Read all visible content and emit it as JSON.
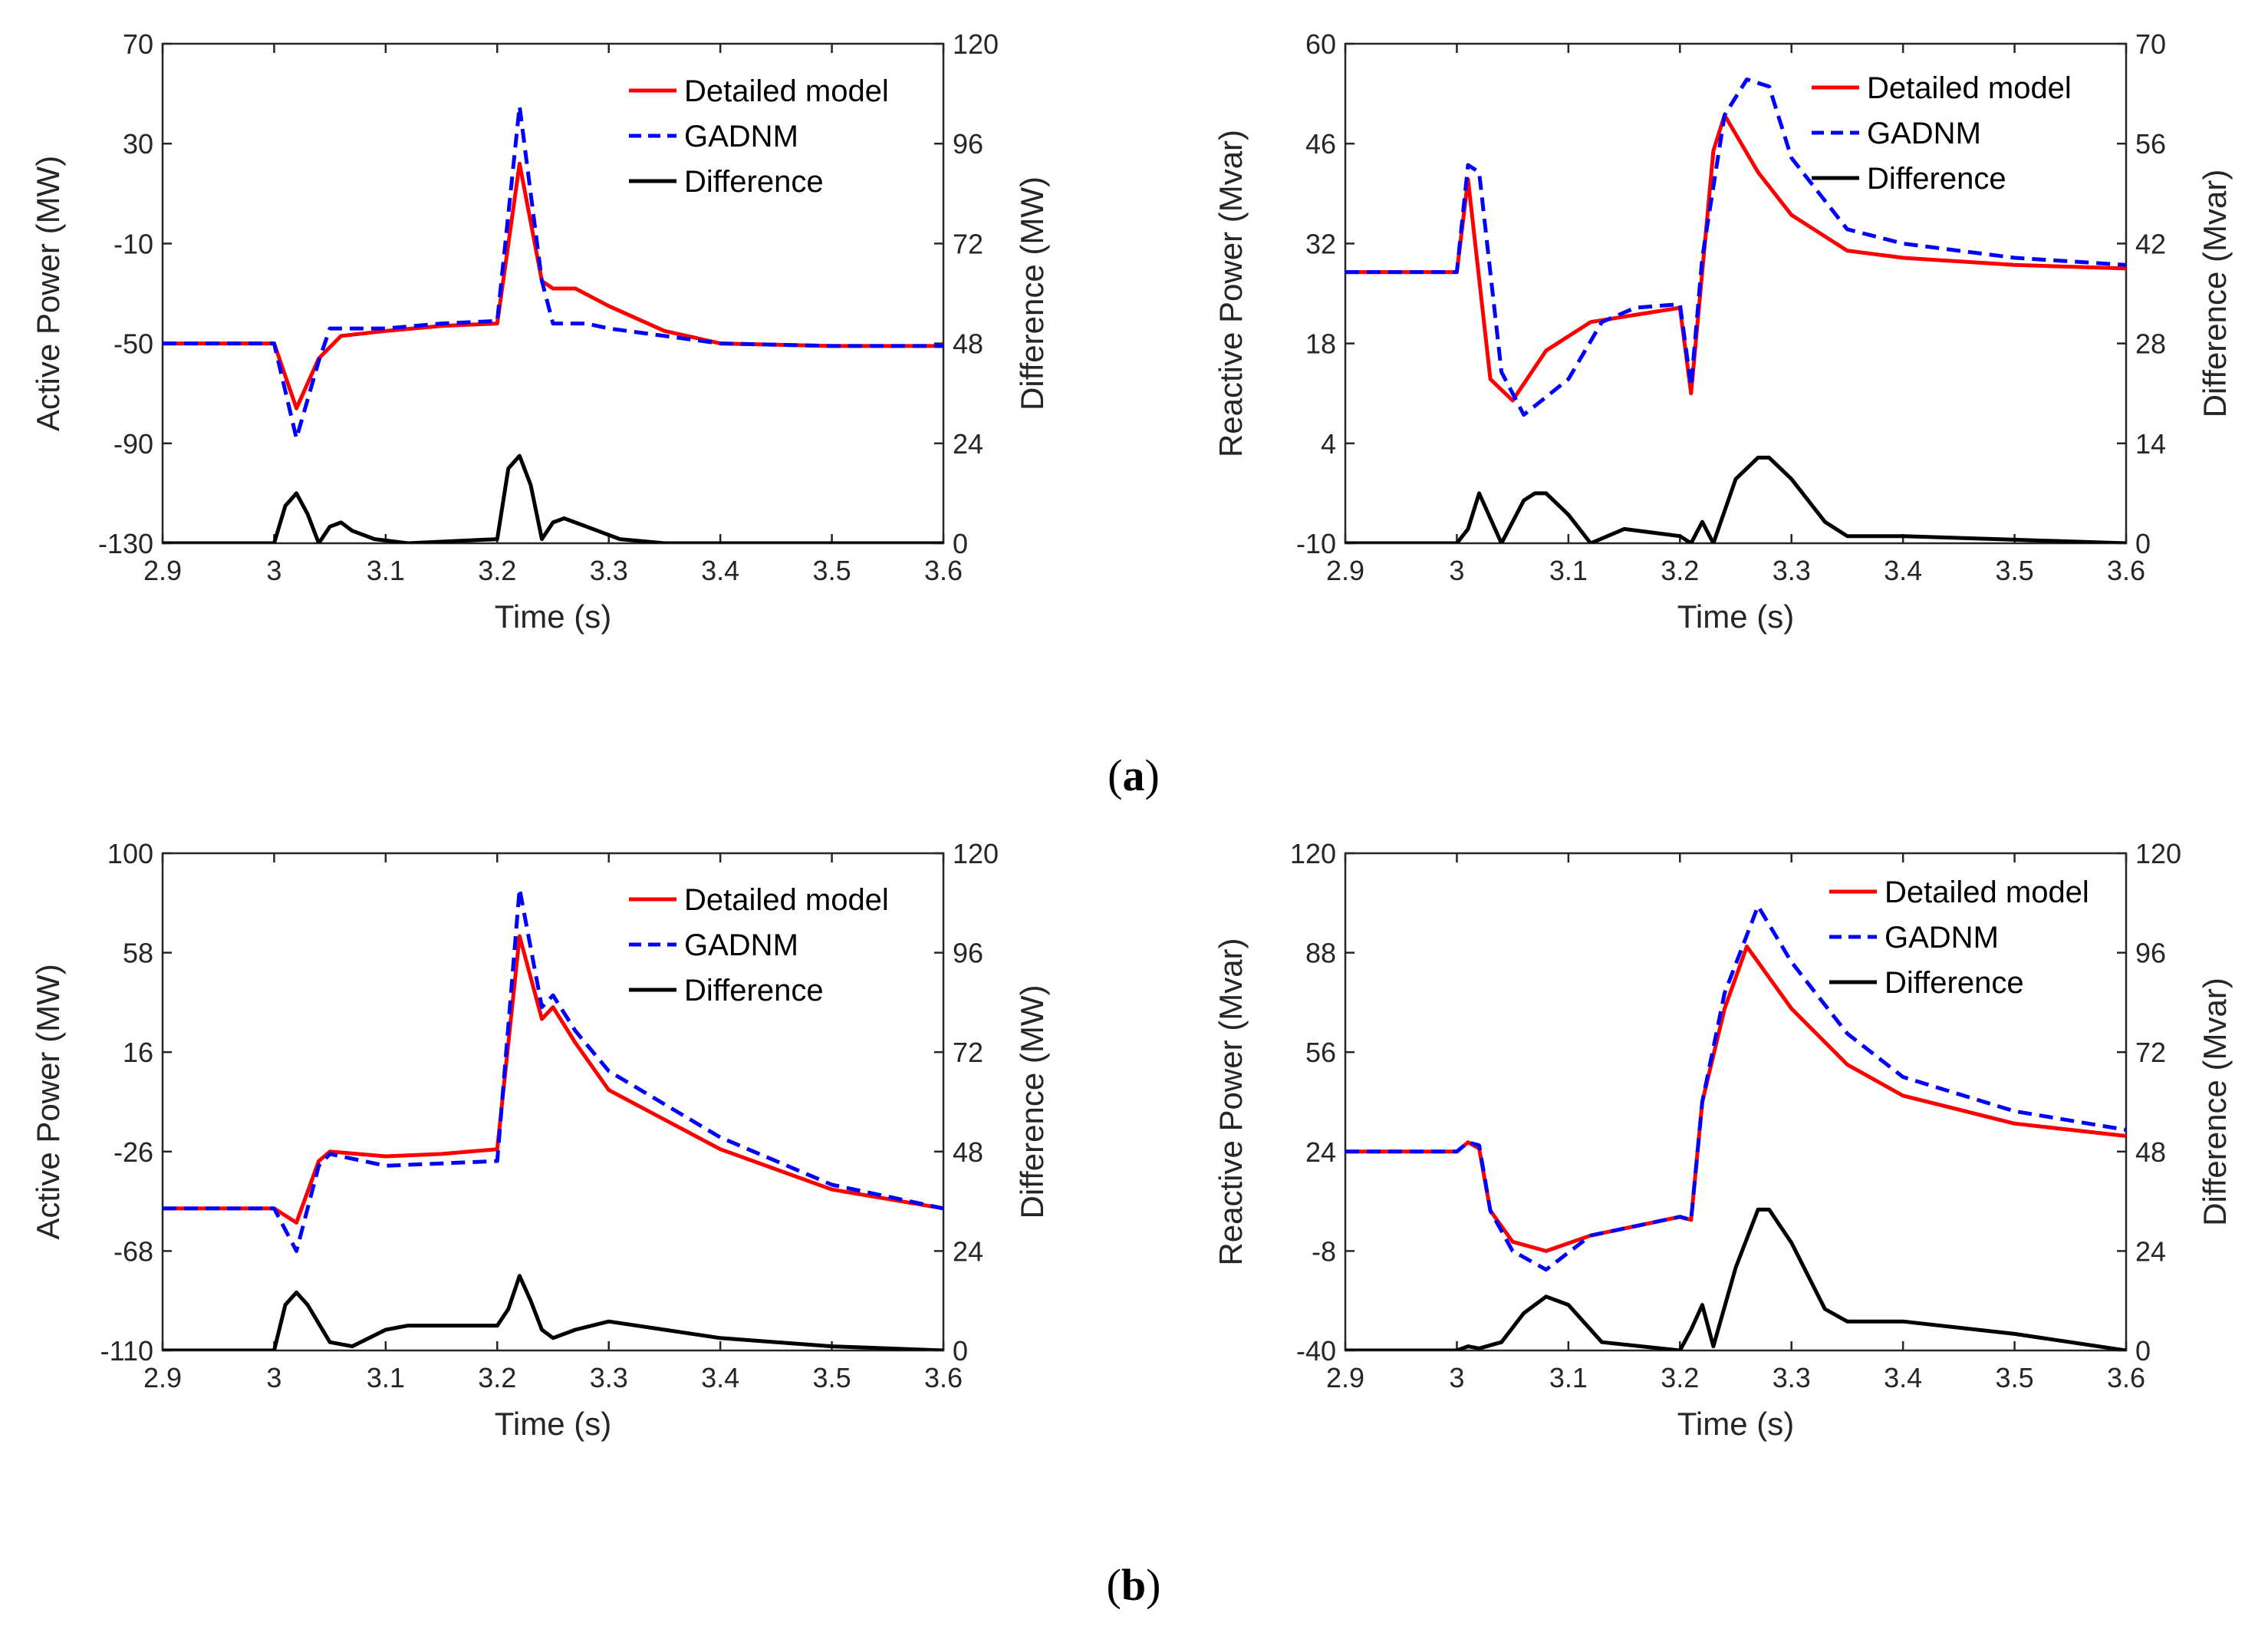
{
  "panel_labels": {
    "a": "a",
    "b": "b"
  },
  "chart_data": [
    {
      "type": "line",
      "id": "a-left",
      "xlabel": "Time (s)",
      "ylabel": "Active Power (MW)",
      "y2label": "Difference (MW)",
      "xlim": [
        2.9,
        3.6
      ],
      "ylim": [
        -130,
        70
      ],
      "y2lim": [
        0,
        120
      ],
      "xticks": [
        "2.9",
        "3",
        "3.1",
        "3.2",
        "3.3",
        "3.4",
        "3.5",
        "3.6"
      ],
      "yticks": [
        "-130",
        "-90",
        "-50",
        "-10",
        "30",
        "70"
      ],
      "y2ticks": [
        "0",
        "24",
        "48",
        "72",
        "96",
        "120"
      ],
      "legend_position": "top-right",
      "series": [
        {
          "name": "Detailed model",
          "axis": "left",
          "color": "#ff0000",
          "style": "solid",
          "x": [
            2.9,
            3.0,
            3.02,
            3.04,
            3.06,
            3.1,
            3.15,
            3.2,
            3.22,
            3.24,
            3.25,
            3.27,
            3.3,
            3.35,
            3.4,
            3.5,
            3.6
          ],
          "y": [
            -50,
            -50,
            -76,
            -56,
            -47,
            -45,
            -43,
            -42,
            22,
            -25,
            -28,
            -28,
            -35,
            -45,
            -50,
            -51,
            -51
          ]
        },
        {
          "name": "GADNM",
          "axis": "left",
          "color": "#0000ff",
          "style": "dashed",
          "x": [
            2.9,
            3.0,
            3.02,
            3.04,
            3.05,
            3.1,
            3.15,
            3.2,
            3.22,
            3.24,
            3.25,
            3.28,
            3.3,
            3.35,
            3.4,
            3.5,
            3.6
          ],
          "y": [
            -50,
            -50,
            -88,
            -57,
            -44,
            -44,
            -42,
            -41,
            45,
            -25,
            -42,
            -42,
            -44,
            -47,
            -50,
            -51,
            -51
          ]
        },
        {
          "name": "Difference",
          "axis": "right",
          "color": "#000000",
          "style": "solid",
          "x": [
            2.9,
            3.0,
            3.01,
            3.02,
            3.03,
            3.04,
            3.05,
            3.06,
            3.07,
            3.09,
            3.12,
            3.2,
            3.21,
            3.22,
            3.23,
            3.24,
            3.25,
            3.26,
            3.28,
            3.31,
            3.35,
            3.6
          ],
          "y": [
            0,
            0,
            9,
            12,
            7,
            0,
            4,
            5,
            3,
            1,
            0,
            1,
            18,
            21,
            14,
            1,
            5,
            6,
            4,
            1,
            0,
            0
          ]
        }
      ]
    },
    {
      "type": "line",
      "id": "a-right",
      "xlabel": "Time (s)",
      "ylabel": "Reactive Power (Mvar)",
      "y2label": "Difference (Mvar)",
      "xlim": [
        2.9,
        3.6
      ],
      "ylim": [
        -10,
        60
      ],
      "y2lim": [
        0,
        70
      ],
      "xticks": [
        "2.9",
        "3",
        "3.1",
        "3.2",
        "3.3",
        "3.4",
        "3.5",
        "3.6"
      ],
      "yticks": [
        "-10",
        "4",
        "18",
        "32",
        "46",
        "60"
      ],
      "y2ticks": [
        "0",
        "14",
        "28",
        "42",
        "56",
        "70"
      ],
      "legend_position": "top-right",
      "series": [
        {
          "name": "Detailed model",
          "axis": "left",
          "color": "#ff0000",
          "style": "solid",
          "x": [
            2.9,
            3.0,
            3.01,
            3.03,
            3.05,
            3.08,
            3.12,
            3.16,
            3.2,
            3.21,
            3.23,
            3.24,
            3.27,
            3.3,
            3.35,
            3.4,
            3.5,
            3.6
          ],
          "y": [
            28,
            28,
            41,
            13,
            10,
            17,
            21,
            22,
            23,
            11,
            45,
            50,
            42,
            36,
            31,
            30,
            29,
            28.5
          ]
        },
        {
          "name": "GADNM",
          "axis": "left",
          "color": "#0000ff",
          "style": "dashed",
          "x": [
            2.9,
            3.0,
            3.01,
            3.02,
            3.04,
            3.06,
            3.1,
            3.13,
            3.16,
            3.2,
            3.21,
            3.22,
            3.24,
            3.26,
            3.28,
            3.3,
            3.35,
            3.4,
            3.5,
            3.6
          ],
          "y": [
            28,
            28,
            43,
            42,
            14,
            8,
            13,
            21,
            23,
            23.5,
            12,
            30,
            50,
            55,
            54,
            44,
            34,
            32,
            30,
            29
          ]
        },
        {
          "name": "Difference",
          "axis": "right",
          "color": "#000000",
          "style": "solid",
          "x": [
            2.9,
            3.0,
            3.01,
            3.02,
            3.04,
            3.06,
            3.07,
            3.08,
            3.1,
            3.12,
            3.15,
            3.2,
            3.21,
            3.22,
            3.23,
            3.25,
            3.27,
            3.28,
            3.3,
            3.33,
            3.35,
            3.4,
            3.5,
            3.6
          ],
          "y": [
            0,
            0,
            2,
            7,
            0,
            6,
            7,
            7,
            4,
            0,
            2,
            1,
            0,
            3,
            0,
            9,
            12,
            12,
            9,
            3,
            1,
            1,
            0.5,
            0
          ]
        }
      ]
    },
    {
      "type": "line",
      "id": "b-left",
      "xlabel": "Time (s)",
      "ylabel": "Active Power (MW)",
      "y2label": "Difference (MW)",
      "xlim": [
        2.9,
        3.6
      ],
      "ylim": [
        -110,
        100
      ],
      "y2lim": [
        0,
        120
      ],
      "xticks": [
        "2.9",
        "3",
        "3.1",
        "3.2",
        "3.3",
        "3.4",
        "3.5",
        "3.6"
      ],
      "yticks": [
        "-110",
        "-68",
        "-26",
        "16",
        "58",
        "100"
      ],
      "y2ticks": [
        "0",
        "24",
        "48",
        "72",
        "96",
        "120"
      ],
      "legend_position": "top-right",
      "series": [
        {
          "name": "Detailed model",
          "axis": "left",
          "color": "#ff0000",
          "style": "solid",
          "x": [
            2.9,
            3.0,
            3.02,
            3.04,
            3.05,
            3.1,
            3.15,
            3.2,
            3.22,
            3.24,
            3.25,
            3.27,
            3.3,
            3.4,
            3.5,
            3.6
          ],
          "y": [
            -50,
            -50,
            -56,
            -30,
            -26,
            -28,
            -27,
            -25,
            65,
            30,
            35,
            20,
            0,
            -25,
            -42,
            -50
          ]
        },
        {
          "name": "GADNM",
          "axis": "left",
          "color": "#0000ff",
          "style": "dashed",
          "x": [
            2.9,
            3.0,
            3.02,
            3.04,
            3.05,
            3.1,
            3.15,
            3.2,
            3.22,
            3.24,
            3.25,
            3.27,
            3.3,
            3.4,
            3.5,
            3.6
          ],
          "y": [
            -50,
            -50,
            -68,
            -32,
            -27,
            -32,
            -31,
            -30,
            85,
            35,
            40,
            25,
            8,
            -20,
            -40,
            -50
          ]
        },
        {
          "name": "Difference",
          "axis": "right",
          "color": "#000000",
          "style": "solid",
          "x": [
            2.9,
            3.0,
            3.01,
            3.02,
            3.03,
            3.05,
            3.07,
            3.1,
            3.12,
            3.15,
            3.2,
            3.21,
            3.22,
            3.23,
            3.24,
            3.25,
            3.27,
            3.3,
            3.35,
            3.4,
            3.5,
            3.6
          ],
          "y": [
            0,
            0,
            11,
            14,
            11,
            2,
            1,
            5,
            6,
            6,
            6,
            10,
            18,
            12,
            5,
            3,
            5,
            7,
            5,
            3,
            1,
            0
          ]
        }
      ]
    },
    {
      "type": "line",
      "id": "b-right",
      "xlabel": "Time (s)",
      "ylabel": "Reactive Power (Mvar)",
      "y2label": "Difference (Mvar)",
      "xlim": [
        2.9,
        3.6
      ],
      "ylim": [
        -40,
        120
      ],
      "y2lim": [
        0,
        120
      ],
      "xticks": [
        "2.9",
        "3",
        "3.1",
        "3.2",
        "3.3",
        "3.4",
        "3.5",
        "3.6"
      ],
      "yticks": [
        "-40",
        "-8",
        "24",
        "56",
        "88",
        "120"
      ],
      "y2ticks": [
        "0",
        "24",
        "48",
        "72",
        "96",
        "120"
      ],
      "legend_position": "top-right",
      "series": [
        {
          "name": "Detailed model",
          "axis": "left",
          "color": "#ff0000",
          "style": "solid",
          "x": [
            2.9,
            3.0,
            3.01,
            3.02,
            3.03,
            3.05,
            3.08,
            3.12,
            3.2,
            3.21,
            3.22,
            3.24,
            3.26,
            3.3,
            3.35,
            3.4,
            3.5,
            3.6
          ],
          "y": [
            24,
            24,
            27,
            25,
            5,
            -5,
            -8,
            -3,
            3,
            2,
            40,
            70,
            90,
            70,
            52,
            42,
            33,
            29
          ]
        },
        {
          "name": "GADNM",
          "axis": "left",
          "color": "#0000ff",
          "style": "dashed",
          "x": [
            2.9,
            3.0,
            3.01,
            3.02,
            3.03,
            3.05,
            3.08,
            3.12,
            3.2,
            3.21,
            3.22,
            3.24,
            3.27,
            3.3,
            3.35,
            3.4,
            3.5,
            3.6
          ],
          "y": [
            24,
            24,
            27,
            26,
            5,
            -8,
            -14,
            -3,
            3,
            2,
            40,
            75,
            103,
            85,
            62,
            48,
            37,
            31
          ]
        },
        {
          "name": "Difference",
          "axis": "right",
          "color": "#000000",
          "style": "solid",
          "x": [
            2.9,
            3.0,
            3.01,
            3.02,
            3.04,
            3.06,
            3.08,
            3.1,
            3.13,
            3.2,
            3.21,
            3.22,
            3.23,
            3.25,
            3.27,
            3.28,
            3.3,
            3.33,
            3.35,
            3.4,
            3.5,
            3.6
          ],
          "y": [
            0,
            0,
            1,
            0.5,
            2,
            9,
            13,
            11,
            2,
            0,
            5,
            11,
            1,
            20,
            34,
            34,
            26,
            10,
            7,
            7,
            4,
            0
          ]
        }
      ]
    }
  ]
}
